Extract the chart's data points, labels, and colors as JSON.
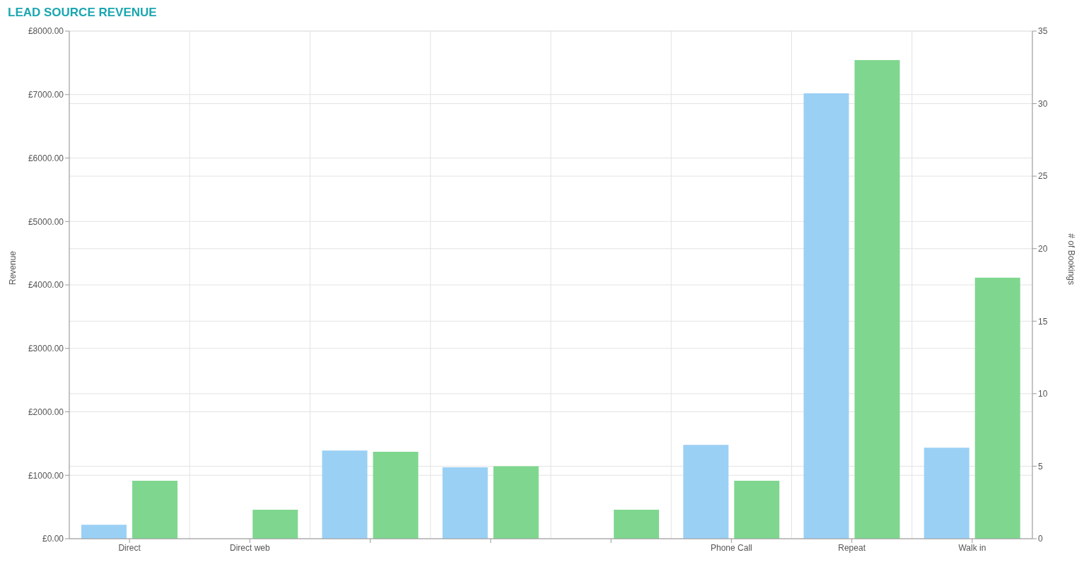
{
  "chart_data": {
    "type": "bar",
    "title": "LEAD SOURCE REVENUE",
    "ylabel": "Revenue",
    "y2label": "# of Bookings",
    "categories": [
      "Direct",
      "Direct web",
      null,
      null,
      null,
      "Phone Call",
      "Repeat",
      "Walk in"
    ],
    "series": [
      {
        "color": "#9bd0f5",
        "values": [
          220,
          0,
          1390,
          1125,
          0,
          1480,
          7020,
          1435
        ]
      },
      {
        "color": "#7fd78f",
        "axis": "y2",
        "values": [
          4,
          2,
          6,
          5,
          2,
          4,
          33,
          18
        ]
      }
    ],
    "ylim": [
      0,
      8000
    ],
    "yticks": [
      {
        "value": 0,
        "label": "£0.00"
      },
      {
        "value": 1000,
        "label": "£1000.00"
      },
      {
        "value": 2000,
        "label": "£2000.00"
      },
      {
        "value": 3000,
        "label": "£3000.00"
      },
      {
        "value": 4000,
        "label": "£4000.00"
      },
      {
        "value": 5000,
        "label": "£5000.00"
      },
      {
        "value": 6000,
        "label": "£6000.00"
      },
      {
        "value": 7000,
        "label": "£7000.00"
      },
      {
        "value": 8000,
        "label": "£8000.00"
      }
    ],
    "y2lim": [
      0,
      35
    ],
    "y2ticks": [
      0,
      5,
      10,
      15,
      20,
      25,
      30,
      35
    ],
    "grid": true
  }
}
